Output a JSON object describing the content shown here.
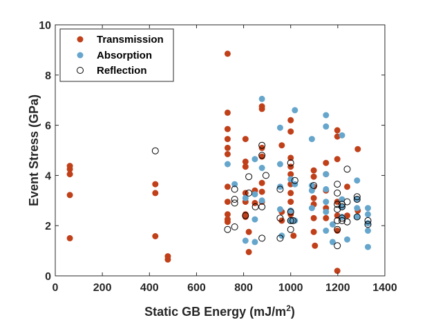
{
  "chart_data": {
    "type": "scatter",
    "xlabel": "Static GB Energy (mJ/m",
    "xlabel_sup": "2",
    "xlabel_end": ")",
    "ylabel": "Event Stress (GPa)",
    "xlim": [
      0,
      1400
    ],
    "ylim": [
      0,
      10
    ],
    "xticks": [
      0,
      200,
      400,
      600,
      800,
      1000,
      1200,
      1400
    ],
    "yticks": [
      0,
      2,
      4,
      6,
      8,
      10
    ],
    "legend_position": "top-left",
    "series": [
      {
        "name": "Transmission",
        "marker": "filled",
        "color": "#c0401a",
        "points": [
          [
            62,
            4.38
          ],
          [
            62,
            4.25
          ],
          [
            62,
            4.05
          ],
          [
            62,
            3.22
          ],
          [
            62,
            1.5
          ],
          [
            425,
            3.65
          ],
          [
            425,
            3.3
          ],
          [
            425,
            1.58
          ],
          [
            478,
            0.78
          ],
          [
            478,
            0.65
          ],
          [
            732,
            8.85
          ],
          [
            732,
            6.5
          ],
          [
            732,
            5.85
          ],
          [
            732,
            5.45
          ],
          [
            732,
            5.1
          ],
          [
            732,
            4.85
          ],
          [
            732,
            3.55
          ],
          [
            732,
            2.95
          ],
          [
            732,
            2.45
          ],
          [
            732,
            2.25
          ],
          [
            732,
            2.15
          ],
          [
            808,
            5.45
          ],
          [
            808,
            4.55
          ],
          [
            808,
            4.35
          ],
          [
            808,
            3.3
          ],
          [
            808,
            2.95
          ],
          [
            808,
            2.45
          ],
          [
            808,
            2.35
          ],
          [
            822,
            1.75
          ],
          [
            822,
            0.95
          ],
          [
            848,
            3.4
          ],
          [
            848,
            2.9
          ],
          [
            878,
            6.75
          ],
          [
            878,
            6.65
          ],
          [
            878,
            5.1
          ],
          [
            878,
            4.75
          ],
          [
            878,
            3.7
          ],
          [
            878,
            3.35
          ],
          [
            878,
            2.95
          ],
          [
            962,
            5.2
          ],
          [
            962,
            2.55
          ],
          [
            962,
            2.2
          ],
          [
            1000,
            6.2
          ],
          [
            1000,
            5.75
          ],
          [
            1000,
            4.7
          ],
          [
            1000,
            4.35
          ],
          [
            1000,
            4.05
          ],
          [
            1000,
            3.65
          ],
          [
            1000,
            3.3
          ],
          [
            1000,
            2.95
          ],
          [
            1000,
            2.45
          ],
          [
            1012,
            1.6
          ],
          [
            1098,
            4.2
          ],
          [
            1098,
            3.95
          ],
          [
            1098,
            3.55
          ],
          [
            1098,
            3.1
          ],
          [
            1098,
            2.85
          ],
          [
            1098,
            2.3
          ],
          [
            1098,
            1.75
          ],
          [
            1103,
            1.2
          ],
          [
            1150,
            4.5
          ],
          [
            1150,
            4.05
          ],
          [
            1150,
            3.4
          ],
          [
            1150,
            2.7
          ],
          [
            1150,
            2.3
          ],
          [
            1198,
            5.8
          ],
          [
            1198,
            5.55
          ],
          [
            1198,
            4.65
          ],
          [
            1198,
            2.95
          ],
          [
            1198,
            2.4
          ],
          [
            1198,
            1.8
          ],
          [
            1198,
            0.2
          ],
          [
            1240,
            3.55
          ],
          [
            1240,
            2.4
          ],
          [
            1285,
            5.05
          ],
          [
            1285,
            2.6
          ]
        ]
      },
      {
        "name": "Absorption",
        "marker": "filled",
        "color": "#66a6cc",
        "points": [
          [
            732,
            4.45
          ],
          [
            762,
            3.65
          ],
          [
            808,
            3.1
          ],
          [
            808,
            1.4
          ],
          [
            848,
            4.65
          ],
          [
            848,
            3.25
          ],
          [
            848,
            2.25
          ],
          [
            848,
            1.35
          ],
          [
            878,
            7.05
          ],
          [
            878,
            4.3
          ],
          [
            878,
            3.0
          ],
          [
            955,
            5.9
          ],
          [
            955,
            4.45
          ],
          [
            955,
            3.55
          ],
          [
            955,
            2.65
          ],
          [
            962,
            1.6
          ],
          [
            1000,
            3.85
          ],
          [
            1000,
            2.6
          ],
          [
            1000,
            2.2
          ],
          [
            1018,
            6.6
          ],
          [
            1018,
            3.65
          ],
          [
            1018,
            2.2
          ],
          [
            1090,
            5.45
          ],
          [
            1090,
            3.6
          ],
          [
            1090,
            3.4
          ],
          [
            1090,
            2.7
          ],
          [
            1150,
            6.4
          ],
          [
            1150,
            5.95
          ],
          [
            1150,
            4.05
          ],
          [
            1150,
            3.45
          ],
          [
            1150,
            2.95
          ],
          [
            1150,
            2.55
          ],
          [
            1150,
            1.8
          ],
          [
            1178,
            2.05
          ],
          [
            1178,
            1.35
          ],
          [
            1218,
            5.6
          ],
          [
            1218,
            3.05
          ],
          [
            1218,
            2.75
          ],
          [
            1218,
            2.35
          ],
          [
            1240,
            1.45
          ],
          [
            1282,
            3.8
          ],
          [
            1282,
            3.05
          ],
          [
            1282,
            2.7
          ],
          [
            1282,
            2.35
          ],
          [
            1328,
            2.7
          ],
          [
            1328,
            2.45
          ],
          [
            1328,
            2.1
          ],
          [
            1328,
            1.8
          ],
          [
            1328,
            1.15
          ]
        ]
      },
      {
        "name": "Reflection",
        "marker": "open",
        "color": "#000000",
        "points": [
          [
            425,
            4.98
          ],
          [
            732,
            1.85
          ],
          [
            762,
            3.45
          ],
          [
            762,
            3.05
          ],
          [
            762,
            2.9
          ],
          [
            762,
            1.95
          ],
          [
            808,
            2.4
          ],
          [
            822,
            3.95
          ],
          [
            822,
            3.3
          ],
          [
            850,
            2.75
          ],
          [
            878,
            5.2
          ],
          [
            878,
            4.8
          ],
          [
            878,
            2.75
          ],
          [
            878,
            1.5
          ],
          [
            895,
            4.0
          ],
          [
            955,
            3.45
          ],
          [
            955,
            2.3
          ],
          [
            955,
            1.5
          ],
          [
            1000,
            4.5
          ],
          [
            1000,
            2.55
          ],
          [
            1000,
            2.2
          ],
          [
            1000,
            1.85
          ],
          [
            1010,
            2.2
          ],
          [
            1018,
            3.8
          ],
          [
            1098,
            3.6
          ],
          [
            1198,
            3.65
          ],
          [
            1198,
            3.3
          ],
          [
            1198,
            2.85
          ],
          [
            1198,
            2.65
          ],
          [
            1198,
            2.2
          ],
          [
            1198,
            1.85
          ],
          [
            1198,
            1.2
          ],
          [
            1218,
            2.85
          ],
          [
            1218,
            2.75
          ],
          [
            1218,
            2.3
          ],
          [
            1218,
            2.2
          ],
          [
            1240,
            4.25
          ],
          [
            1240,
            2.95
          ],
          [
            1240,
            2.15
          ],
          [
            1282,
            3.15
          ],
          [
            1282,
            3.05
          ],
          [
            1282,
            2.35
          ],
          [
            1328,
            2.2
          ],
          [
            1328,
            2.05
          ]
        ]
      }
    ]
  }
}
